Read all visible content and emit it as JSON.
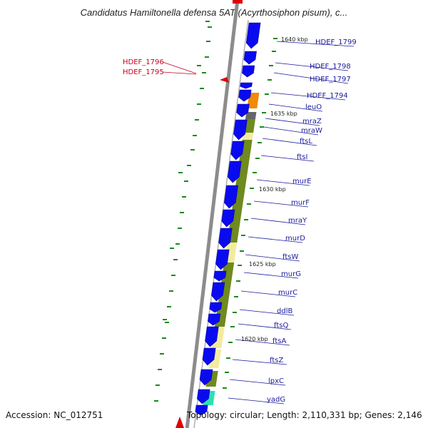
{
  "title": "Candidatus Hamiltonella defensa 5AT (Acyrthosiphon pisum), c...",
  "footer": {
    "accession": "Accession: NC_012751",
    "topology": "Topology: circular; Length: 2,110,331 bp; Genes: 2,146"
  },
  "colors": {
    "gene_blue": "#0a0af0",
    "olive": "#6f8a1e",
    "pale_yellow": "#f2eba0",
    "orange": "#f08a0a",
    "teal": "#2ee0b0",
    "gray_bar": "#8c8c8c",
    "label_blue": "#1a1a9c",
    "label_red": "#c8001e",
    "tick_green": "#1a8a1a"
  },
  "position_labels": [
    "1640 kbp",
    "1635 kbp",
    "1630 kbp",
    "1625 kbp",
    "1620 kbp"
  ],
  "gene_labels": [
    "HDEF_1799",
    "HDEF_1798",
    "HDEF_1797",
    "HDEF_1794",
    "leuO",
    "mraZ",
    "mraW",
    "ftsL",
    "ftsI",
    "murE",
    "murF",
    "mraY",
    "murD",
    "ftsW",
    "murG",
    "murC",
    "ddlB",
    "ftsQ",
    "ftsA",
    "ftsZ",
    "lpxC",
    "yadG"
  ],
  "red_labels": [
    "HDEF_1796",
    "HDEF_1795"
  ]
}
